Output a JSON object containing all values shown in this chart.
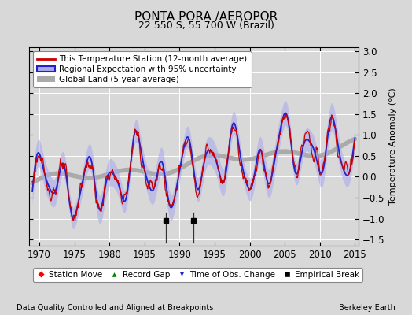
{
  "title": "PONTA PORA /AEROPOR",
  "subtitle": "22.550 S, 55.700 W (Brazil)",
  "ylabel": "Temperature Anomaly (°C)",
  "xlabel_note": "Data Quality Controlled and Aligned at Breakpoints",
  "credit": "Berkeley Earth",
  "xlim": [
    1968.5,
    2015.5
  ],
  "ylim": [
    -1.65,
    3.1
  ],
  "yticks": [
    -1.5,
    -1.0,
    -0.5,
    0.0,
    0.5,
    1.0,
    1.5,
    2.0,
    2.5,
    3.0
  ],
  "xticks": [
    1970,
    1975,
    1980,
    1985,
    1990,
    1995,
    2000,
    2005,
    2010,
    2015
  ],
  "bg_color": "#d8d8d8",
  "plot_bg_color": "#d8d8d8",
  "station_color": "#cc0000",
  "regional_color": "#2222cc",
  "regional_uncertainty_color": "#aaaaee",
  "global_color": "#aaaaaa",
  "empirical_break_years": [
    1988,
    1992
  ],
  "grid_color": "#ffffff",
  "title_fontsize": 11,
  "subtitle_fontsize": 9,
  "tick_fontsize": 8.5,
  "ylabel_fontsize": 8,
  "legend_fontsize": 7.5,
  "note_fontsize": 7
}
